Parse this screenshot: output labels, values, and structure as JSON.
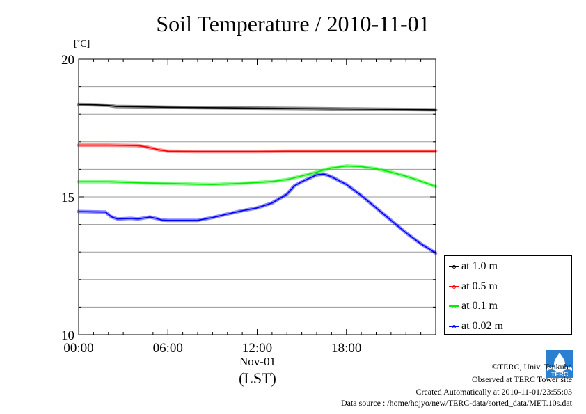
{
  "title": "Soil Temperature / 2010-11-01",
  "unit_label": "[˚C]",
  "x_date_label": "Nov-01",
  "x_tz_label": "(LST)",
  "footer": {
    "copyright": "©TERC, Univ. Tsukuba",
    "site": "Observed at TERC Tower site",
    "created": "Created Automatically at 2010-11-01/23:55:03",
    "source": "Data source : /home/hojyo/new/TERC-data/sorted_data/MET.10s.dat"
  },
  "logo_text": "TERC",
  "chart_data": {
    "type": "line",
    "title": "Soil Temperature / 2010-11-01",
    "ylabel": "[˚C]",
    "xlabel": "Nov-01 (LST)",
    "xlim": [
      0,
      24
    ],
    "ylim": [
      10,
      20
    ],
    "x_ticks": [
      0,
      6,
      12,
      18
    ],
    "x_tick_labels": [
      "00:00",
      "06:00",
      "12:00",
      "18:00"
    ],
    "y_ticks": [
      10,
      15,
      20
    ],
    "y_tick_labels": [
      "10",
      "15",
      "20"
    ],
    "grid": true,
    "legend_position": "right",
    "series": [
      {
        "name": "at 1.0 m",
        "color": "#000000",
        "points": [
          [
            0,
            18.35
          ],
          [
            1,
            18.34
          ],
          [
            2,
            18.32
          ],
          [
            2.5,
            18.28
          ],
          [
            4,
            18.27
          ],
          [
            6,
            18.25
          ],
          [
            8,
            18.24
          ],
          [
            10,
            18.23
          ],
          [
            12,
            18.22
          ],
          [
            14,
            18.21
          ],
          [
            16,
            18.2
          ],
          [
            18,
            18.19
          ],
          [
            20,
            18.18
          ],
          [
            22,
            18.17
          ],
          [
            24,
            18.16
          ]
        ]
      },
      {
        "name": "at 0.5 m",
        "color": "#ff0000",
        "points": [
          [
            0,
            16.88
          ],
          [
            2,
            16.88
          ],
          [
            4,
            16.86
          ],
          [
            4.5,
            16.82
          ],
          [
            5.5,
            16.7
          ],
          [
            6,
            16.66
          ],
          [
            8,
            16.65
          ],
          [
            10,
            16.65
          ],
          [
            12,
            16.65
          ],
          [
            14,
            16.66
          ],
          [
            16,
            16.66
          ],
          [
            18,
            16.66
          ],
          [
            20,
            16.66
          ],
          [
            22,
            16.66
          ],
          [
            24,
            16.66
          ]
        ]
      },
      {
        "name": "at 0.1 m",
        "color": "#00ee00",
        "points": [
          [
            0,
            15.55
          ],
          [
            2,
            15.55
          ],
          [
            4,
            15.51
          ],
          [
            6,
            15.49
          ],
          [
            8,
            15.46
          ],
          [
            9,
            15.45
          ],
          [
            10,
            15.47
          ],
          [
            12,
            15.52
          ],
          [
            13,
            15.56
          ],
          [
            14,
            15.63
          ],
          [
            15,
            15.76
          ],
          [
            16,
            15.9
          ],
          [
            17,
            16.05
          ],
          [
            18,
            16.12
          ],
          [
            19,
            16.1
          ],
          [
            20,
            16.02
          ],
          [
            21,
            15.9
          ],
          [
            22,
            15.75
          ],
          [
            23,
            15.57
          ],
          [
            24,
            15.38
          ]
        ]
      },
      {
        "name": "at 0.02 m",
        "color": "#0000ff",
        "points": [
          [
            0,
            14.47
          ],
          [
            1.8,
            14.45
          ],
          [
            2.2,
            14.28
          ],
          [
            2.6,
            14.2
          ],
          [
            3.5,
            14.22
          ],
          [
            4,
            14.2
          ],
          [
            4.8,
            14.27
          ],
          [
            5.2,
            14.22
          ],
          [
            5.6,
            14.16
          ],
          [
            6,
            14.15
          ],
          [
            7,
            14.15
          ],
          [
            8,
            14.15
          ],
          [
            9,
            14.25
          ],
          [
            10,
            14.38
          ],
          [
            11,
            14.5
          ],
          [
            12,
            14.6
          ],
          [
            13,
            14.78
          ],
          [
            14,
            15.1
          ],
          [
            14.5,
            15.4
          ],
          [
            15,
            15.55
          ],
          [
            16,
            15.8
          ],
          [
            16.5,
            15.83
          ],
          [
            17,
            15.73
          ],
          [
            18,
            15.45
          ],
          [
            19,
            15.05
          ],
          [
            20,
            14.6
          ],
          [
            21,
            14.15
          ],
          [
            22,
            13.7
          ],
          [
            23,
            13.3
          ],
          [
            24,
            12.96
          ]
        ]
      }
    ]
  }
}
